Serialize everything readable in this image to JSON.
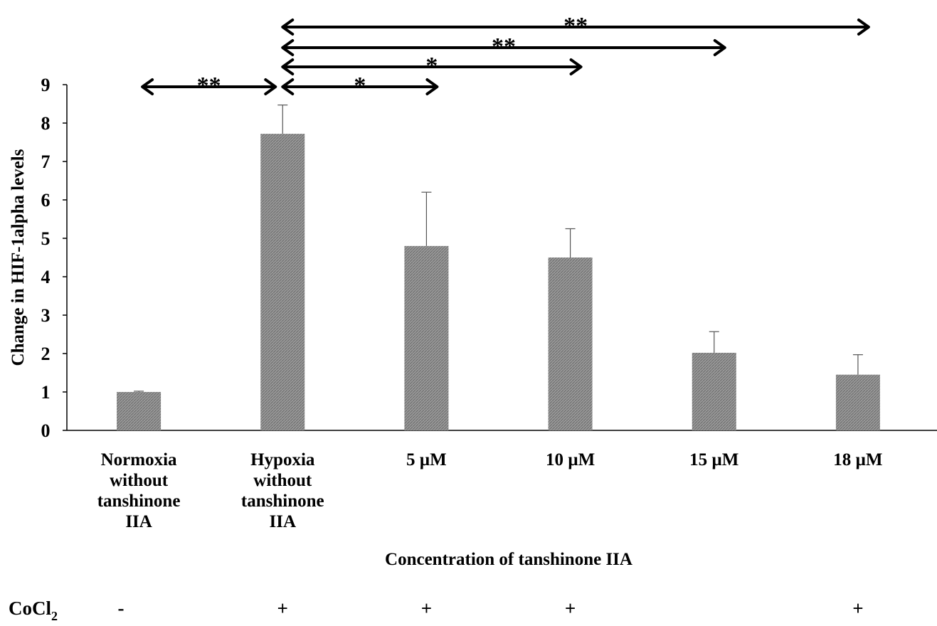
{
  "chart_data": {
    "type": "bar",
    "categories": [
      [
        "Normoxia",
        "without",
        "tanshinone",
        "IIA"
      ],
      [
        "Hypoxia",
        "without",
        "tanshinone",
        "IIA"
      ],
      [
        "5 µM"
      ],
      [
        "10 µM"
      ],
      [
        "15 µM"
      ],
      [
        "18 µM"
      ]
    ],
    "values": [
      1.0,
      7.72,
      4.8,
      4.5,
      2.02,
      1.45
    ],
    "errors": [
      0.02,
      0.75,
      1.4,
      0.75,
      0.55,
      0.52
    ],
    "xlabel": "Concentration of tanshinone IIA",
    "ylabel": "Change in  HIF-1alpha levels",
    "ylim": [
      0,
      9
    ],
    "yticks": [
      "0",
      "1",
      "2",
      "3",
      "4",
      "5",
      "6",
      "7",
      "8",
      "9"
    ],
    "bar_color": "#8a8a8a",
    "grid": false,
    "significance": [
      {
        "from": 0,
        "to": 1,
        "label": "**"
      },
      {
        "from": 1,
        "to": 2,
        "label": "*"
      },
      {
        "from": 1,
        "to": 3,
        "label": "*"
      },
      {
        "from": 1,
        "to": 4,
        "label": "**"
      },
      {
        "from": 1,
        "to": 5,
        "label": "**"
      }
    ],
    "treatment_row": {
      "label_main": "CoCl",
      "label_sub": "2",
      "marks": [
        "-",
        "+",
        "+",
        "+",
        "",
        "+"
      ]
    }
  }
}
